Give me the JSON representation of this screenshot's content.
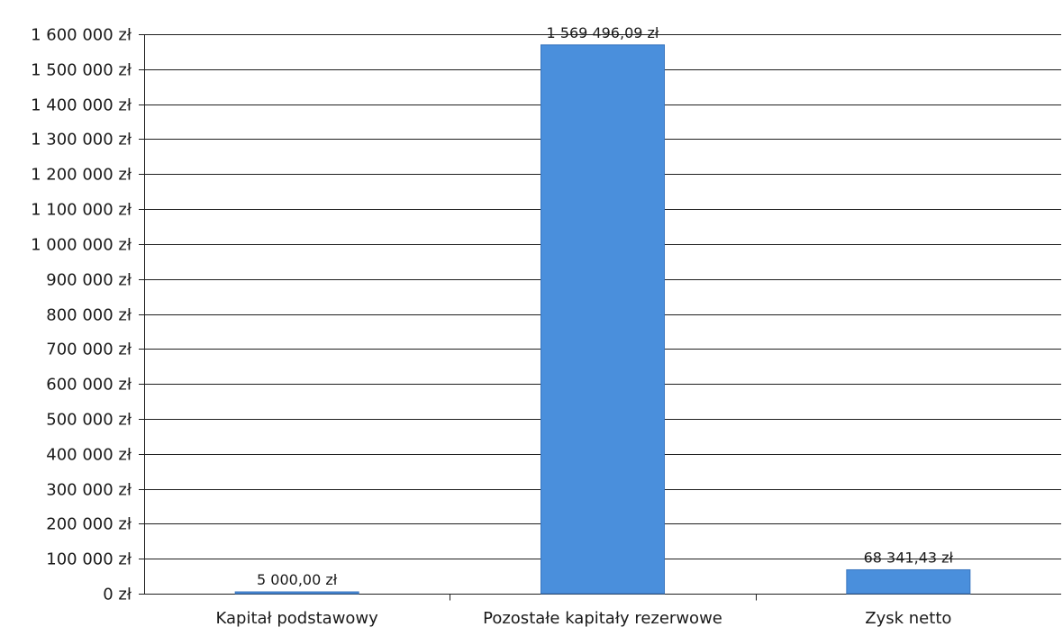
{
  "chart_data": {
    "type": "bar",
    "categories": [
      "Kapitał podstawowy",
      "Pozostałe kapitały rezerwowe",
      "Zysk netto"
    ],
    "values": [
      5000.0,
      1569496.09,
      68341.43
    ],
    "data_labels": [
      "5 000,00 zł",
      "1 569 496,09 zł",
      "68 341,43 zł"
    ],
    "ylim": [
      0,
      1600000
    ],
    "yticks": [
      0,
      100000,
      200000,
      300000,
      400000,
      500000,
      600000,
      700000,
      800000,
      900000,
      1000000,
      1100000,
      1200000,
      1300000,
      1400000,
      1500000,
      1600000
    ],
    "ytick_labels": [
      "0 zł",
      "100 000 zł",
      "200 000 zł",
      "300 000 zł",
      "400 000 zł",
      "500 000 zł",
      "600 000 zł",
      "700 000 zł",
      "800 000 zł",
      "900 000 zł",
      "1 000 000 zł",
      "1 100 000 zł",
      "1 200 000 zł",
      "1 300 000 zł",
      "1 400 000 zł",
      "1 500 000 zł",
      "1 600 000 zł"
    ],
    "grid": true,
    "legend": false,
    "title": "",
    "xlabel": "",
    "ylabel": ""
  },
  "colors": {
    "bar_fill": "#4a8fdc",
    "bar_stroke": "#3a76bf",
    "grid": "#1f1f1f",
    "axis": "#1f1f1f",
    "text": "#1a1a1a"
  }
}
